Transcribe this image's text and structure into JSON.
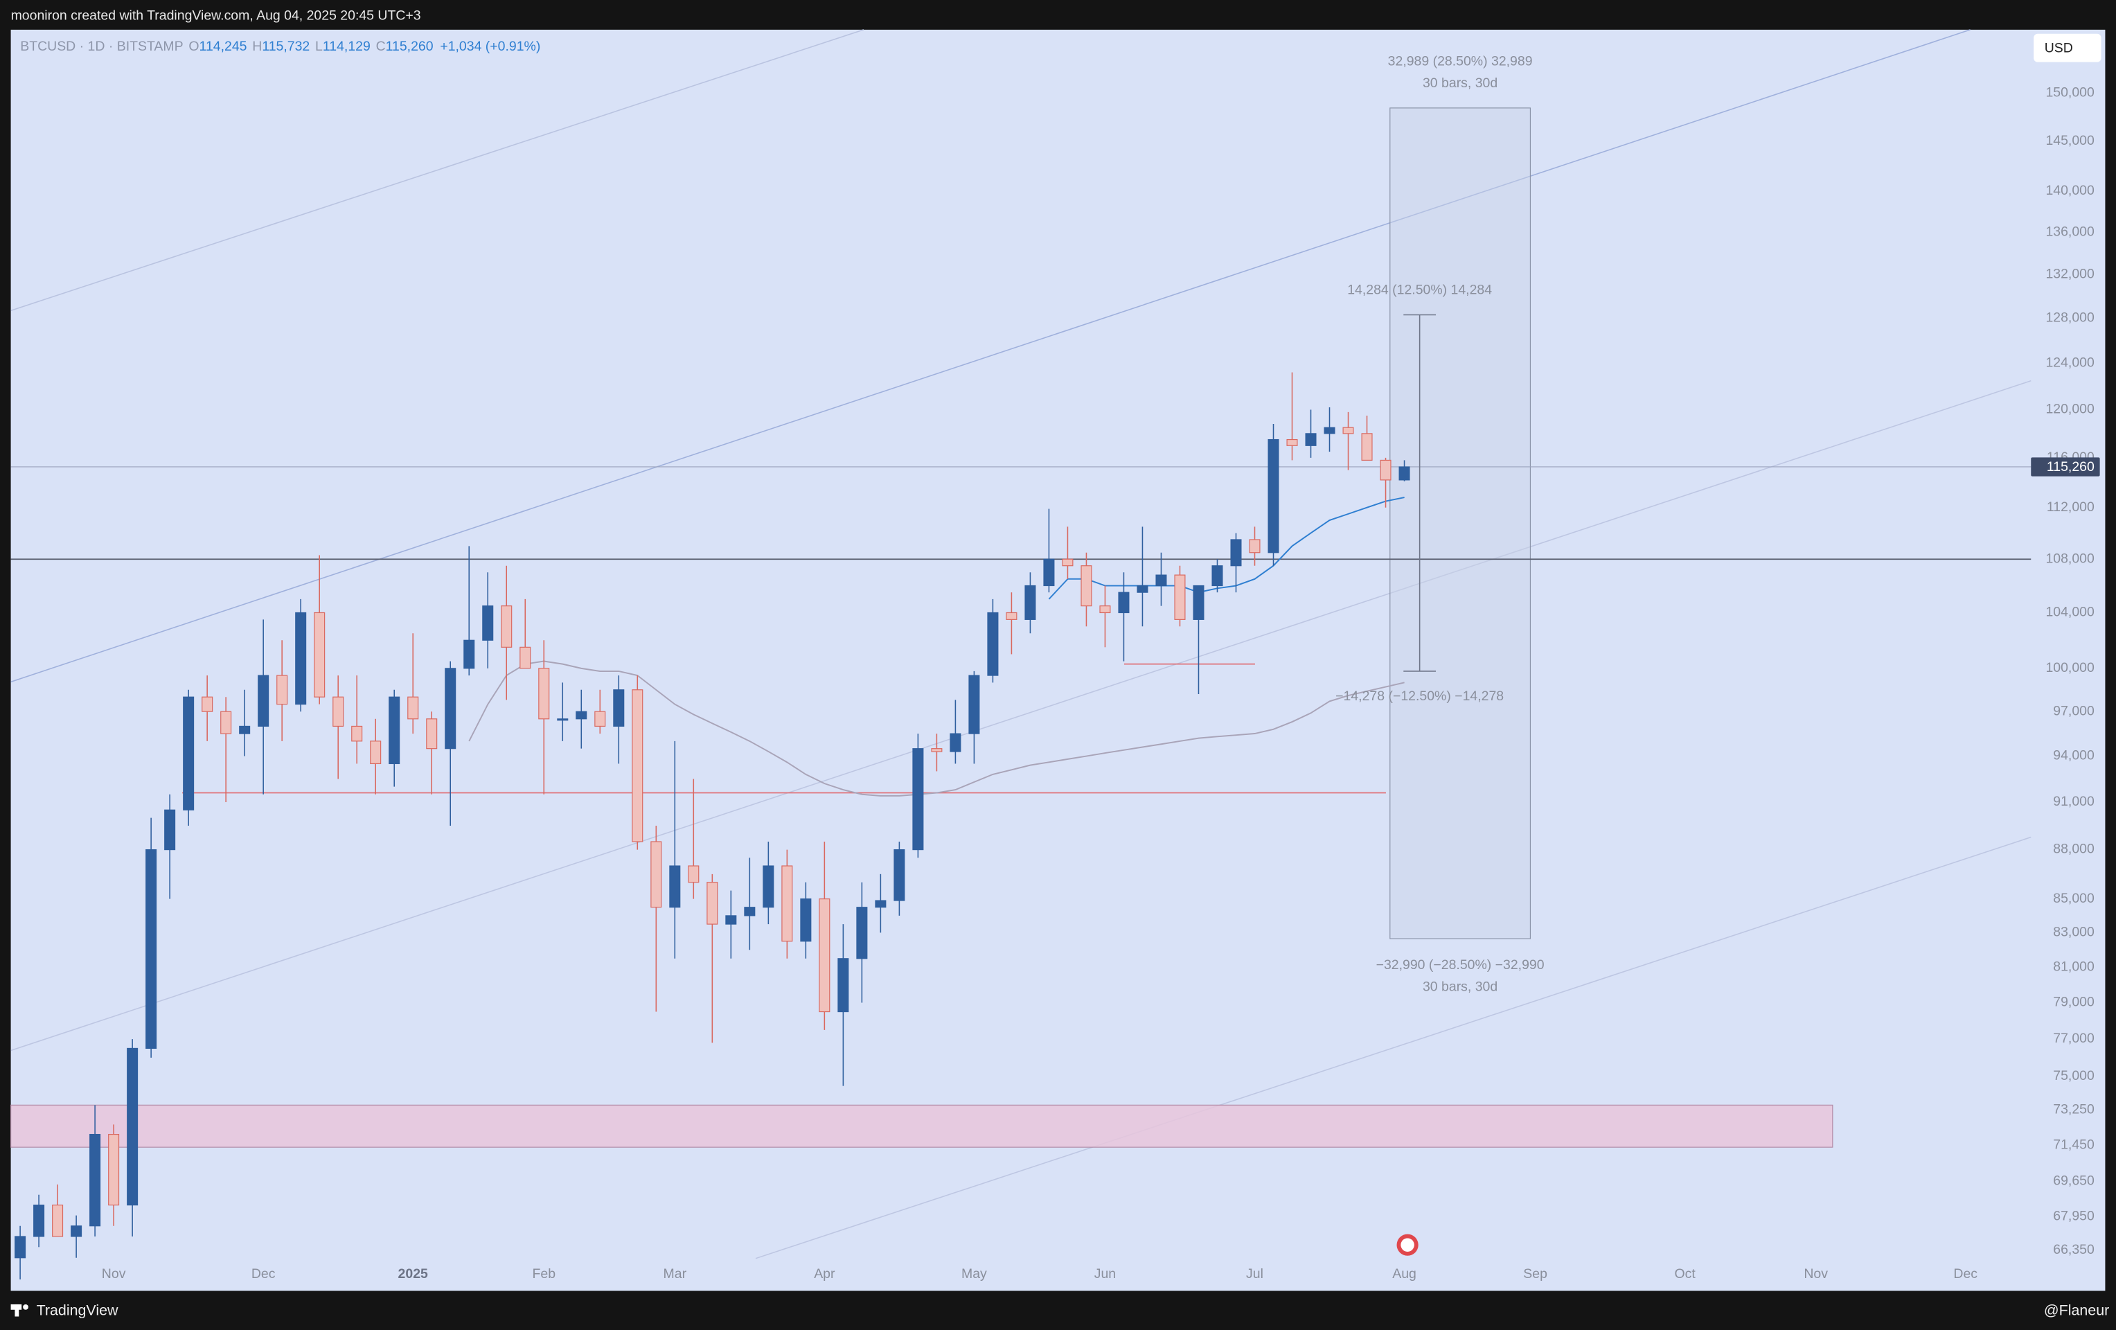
{
  "header": {
    "credit": "mooniron created with TradingView.com, Aug 04, 2025 20:45 UTC+3",
    "legend": {
      "symbol": "BTCUSD · 1D · BITSTAMP",
      "o_key": "O",
      "o": "114,245",
      "h_key": "H",
      "h": "115,732",
      "l_key": "L",
      "l": "114,129",
      "c_key": "C",
      "c": "115,260",
      "change": "+1,034 (+0.91%)"
    },
    "currency": "USD"
  },
  "footer": {
    "brand": "TradingView",
    "author": "@Flaneur"
  },
  "chart_data": {
    "type": "candlestick",
    "log_scale": true,
    "categories": [
      null,
      null,
      null,
      null,
      null,
      "Nov",
      null,
      null,
      null,
      null,
      null,
      null,
      null,
      "Dec",
      null,
      null,
      null,
      null,
      null,
      null,
      null,
      "2025",
      null,
      null,
      null,
      null,
      null,
      null,
      "Feb",
      null,
      null,
      null,
      null,
      null,
      null,
      "Mar",
      null,
      null,
      null,
      null,
      null,
      null,
      null,
      "Apr",
      null,
      null,
      null,
      null,
      null,
      null,
      null,
      "May",
      null,
      null,
      null,
      null,
      null,
      null,
      "Jun",
      null,
      null,
      null,
      null,
      null,
      null,
      null,
      "Jul",
      null,
      null,
      null,
      null,
      null,
      null,
      null,
      "Aug",
      null,
      null,
      null,
      null,
      null,
      null,
      "Sep",
      null,
      null,
      null,
      null,
      null,
      null,
      null,
      "Oct",
      null,
      null,
      null,
      null,
      null,
      null,
      "Nov",
      null,
      null,
      null,
      null,
      null,
      null,
      null,
      "Dec",
      null,
      null,
      null
    ],
    "open": [
      66000,
      67000,
      68500,
      67000,
      67500,
      72000,
      68500,
      76500,
      88000,
      90500,
      98000,
      97000,
      95500,
      96000,
      99500,
      97500,
      104000,
      98000,
      96000,
      95000,
      93500,
      98000,
      96500,
      94500,
      100000,
      102000,
      104500,
      101500,
      100000,
      96500,
      96500,
      97000,
      96000,
      98500,
      88500,
      84500,
      87000,
      86000,
      83500,
      84000,
      84500,
      87000,
      82500,
      85000,
      78500,
      81500,
      84500,
      84900,
      88000,
      94500,
      94300,
      95500,
      99500,
      104000,
      103500,
      106000,
      108000,
      107500,
      104500,
      104000,
      105500,
      106000,
      106800,
      103500,
      106000,
      107500,
      109500,
      108500,
      117500,
      117000,
      118000,
      118500,
      118000,
      115800,
      114200,
      null,
      null,
      null,
      null,
      null,
      null,
      null,
      null,
      null,
      null,
      null,
      null,
      null,
      null,
      null,
      null,
      null,
      null,
      null,
      null,
      null,
      null,
      null,
      null,
      null,
      null,
      null,
      null,
      null,
      null,
      null,
      null,
      null
    ],
    "high": [
      67500,
      69000,
      69500,
      68000,
      73500,
      72500,
      77000,
      90000,
      91500,
      98500,
      99500,
      98000,
      98500,
      103500,
      102000,
      105000,
      108300,
      99500,
      99500,
      96500,
      98500,
      102500,
      97000,
      100500,
      109000,
      107000,
      107500,
      105000,
      102000,
      99000,
      98500,
      98500,
      99500,
      99500,
      89500,
      95000,
      92500,
      86500,
      85500,
      87500,
      88500,
      88000,
      86000,
      88500,
      83500,
      86000,
      86500,
      88500,
      95500,
      95500,
      97800,
      99800,
      105000,
      105500,
      107000,
      111900,
      110500,
      108500,
      106000,
      107000,
      110500,
      108500,
      107500,
      106000,
      108000,
      110000,
      110500,
      118800,
      123200,
      120000,
      120200,
      119800,
      119500,
      116000,
      115800,
      null,
      null,
      null,
      null,
      null,
      null,
      null,
      null,
      null,
      null,
      null,
      null,
      null,
      null,
      null,
      null,
      null,
      null,
      null,
      null,
      null,
      null,
      null,
      null,
      null,
      null,
      null,
      null,
      null,
      null,
      null,
      null,
      null
    ],
    "low": [
      65000,
      66500,
      67000,
      66000,
      67000,
      67500,
      67000,
      76000,
      85000,
      89500,
      95000,
      91000,
      94000,
      91500,
      95000,
      97000,
      97500,
      92500,
      93500,
      91500,
      92000,
      95500,
      91500,
      89500,
      99500,
      100000,
      97800,
      100000,
      91500,
      95000,
      94500,
      95500,
      93500,
      88000,
      78500,
      81500,
      85000,
      76800,
      81500,
      82000,
      83500,
      81500,
      81500,
      77500,
      74500,
      79000,
      83000,
      84000,
      87500,
      93000,
      93500,
      93500,
      99000,
      101000,
      102500,
      105500,
      106500,
      103000,
      101500,
      100500,
      103000,
      104500,
      103000,
      98200,
      105500,
      105500,
      107500,
      107500,
      115800,
      116000,
      116500,
      115000,
      115800,
      112000,
      114100,
      null,
      null,
      null,
      null,
      null,
      null,
      null,
      null,
      null,
      null,
      null,
      null,
      null,
      null,
      null,
      null,
      null,
      null,
      null,
      null,
      null,
      null,
      null,
      null,
      null,
      null,
      null,
      null,
      null,
      null,
      null,
      null,
      null
    ],
    "close": [
      67000,
      68500,
      67000,
      67500,
      72000,
      68500,
      76500,
      88000,
      90500,
      98000,
      97000,
      95500,
      96000,
      99500,
      97500,
      104000,
      98000,
      96000,
      95000,
      93500,
      98000,
      96500,
      94500,
      100000,
      102000,
      104500,
      101500,
      100000,
      96500,
      96500,
      97000,
      96000,
      98500,
      88500,
      84500,
      87000,
      86000,
      83500,
      84000,
      84500,
      87000,
      82500,
      85000,
      78500,
      81500,
      84500,
      84900,
      88000,
      94500,
      94300,
      95500,
      99500,
      104000,
      103500,
      106000,
      108000,
      107500,
      104500,
      104000,
      105500,
      106000,
      106800,
      103500,
      106000,
      107500,
      109500,
      108500,
      117500,
      117000,
      118000,
      118500,
      118000,
      115800,
      114200,
      115260,
      null,
      null,
      null,
      null,
      null,
      null,
      null,
      null,
      null,
      null,
      null,
      null,
      null,
      null,
      null,
      null,
      null,
      null,
      null,
      null,
      null,
      null,
      null,
      null,
      null,
      null,
      null,
      null,
      null,
      null,
      null,
      null,
      null
    ],
    "up_color": "#2f5f9e",
    "down_color": "#d9685f",
    "down_fill": "#f1c1bc",
    "lines": [
      {
        "color": "#a9a4b8",
        "values": [
          null,
          null,
          null,
          null,
          null,
          null,
          null,
          null,
          null,
          null,
          null,
          null,
          null,
          null,
          null,
          null,
          null,
          null,
          null,
          null,
          null,
          null,
          null,
          null,
          95000,
          97500,
          99500,
          100300,
          100500,
          100300,
          100000,
          99800,
          99800,
          99500,
          98500,
          97500,
          96800,
          96200,
          95600,
          95000,
          94300,
          93600,
          92800,
          92200,
          91800,
          91500,
          91400,
          91400,
          91500,
          91600,
          91800,
          92300,
          92800,
          93100,
          93400,
          93600,
          93800,
          94000,
          94200,
          94400,
          94600,
          94800,
          95000,
          95200,
          95300,
          95400,
          95500,
          95800,
          96300,
          96900,
          97700,
          98100,
          98400,
          98700,
          99000,
          null,
          null,
          null,
          null,
          null,
          null,
          null,
          null,
          null,
          null,
          null,
          null,
          null,
          null,
          null,
          null,
          null,
          null,
          null,
          null,
          null,
          null,
          null,
          null,
          null,
          null,
          null,
          null,
          null,
          null,
          null,
          null,
          null
        ]
      },
      {
        "color": "#2f7fd1",
        "values": [
          null,
          null,
          null,
          null,
          null,
          null,
          null,
          null,
          null,
          null,
          null,
          null,
          null,
          null,
          null,
          null,
          null,
          null,
          null,
          null,
          null,
          null,
          null,
          null,
          null,
          null,
          null,
          null,
          null,
          null,
          null,
          null,
          null,
          null,
          null,
          null,
          null,
          null,
          null,
          null,
          null,
          null,
          null,
          null,
          null,
          null,
          null,
          null,
          null,
          null,
          null,
          null,
          null,
          null,
          null,
          105000,
          106500,
          106500,
          106000,
          106000,
          106000,
          106000,
          106000,
          105500,
          105800,
          106000,
          106500,
          107500,
          109000,
          110000,
          111000,
          111500,
          112000,
          112500,
          112800,
          null,
          null,
          null,
          null,
          null,
          null,
          null,
          null,
          null,
          null,
          null,
          null,
          null,
          null,
          null,
          null,
          null,
          null,
          null,
          null,
          null,
          null,
          null,
          null,
          null,
          null,
          null,
          null,
          null,
          null,
          null,
          null,
          null
        ]
      }
    ],
    "levels": [
      {
        "value": 108000,
        "color": "#5a5f70"
      },
      {
        "value": 91600,
        "color": "#e0737a"
      },
      {
        "value": 100300,
        "color": "#e0737a"
      }
    ],
    "zone": {
      "from": 71350,
      "to": 73500,
      "color": "#e7c6dc"
    },
    "measure": {
      "top": 148440,
      "bottom": 82650,
      "top_text": "32,989 (28.50%) 32,989",
      "top_sub": "30 bars, 30d",
      "bottom_text": "−32,990 (−28.50%) −32,990",
      "bottom_sub": "30 bars, 30d"
    },
    "arrow": {
      "from": 128300,
      "to": 99800,
      "up_text": "14,284 (12.50%) 14,284",
      "down_text": "−14,278 (−12.50%) −14,278"
    },
    "last_price": {
      "value": 115260,
      "label": "115,260"
    },
    "ylim": [
      64480,
      156860
    ],
    "yticks": [
      {
        "value": 150000,
        "label": "150,000"
      },
      {
        "value": 145000,
        "label": "145,000"
      },
      {
        "value": 140000,
        "label": "140,000"
      },
      {
        "value": 136000,
        "label": "136,000"
      },
      {
        "value": 132000,
        "label": "132,000"
      },
      {
        "value": 128000,
        "label": "128,000"
      },
      {
        "value": 124000,
        "label": "124,000"
      },
      {
        "value": 120000,
        "label": "120,000"
      },
      {
        "value": 116000,
        "label": "116,000"
      },
      {
        "value": 112000,
        "label": "112,000"
      },
      {
        "value": 108000,
        "label": "108,000"
      },
      {
        "value": 104000,
        "label": "104,000"
      },
      {
        "value": 100000,
        "label": "100,000"
      },
      {
        "value": 97000,
        "label": "97,000"
      },
      {
        "value": 94000,
        "label": "94,000"
      },
      {
        "value": 91000,
        "label": "91,000"
      },
      {
        "value": 88000,
        "label": "88,000"
      },
      {
        "value": 85000,
        "label": "85,000"
      },
      {
        "value": 83000,
        "label": "83,000"
      },
      {
        "value": 81000,
        "label": "81,000"
      },
      {
        "value": 79000,
        "label": "79,000"
      },
      {
        "value": 77000,
        "label": "77,000"
      },
      {
        "value": 75000,
        "label": "75,000"
      },
      {
        "value": 73250,
        "label": "73,250"
      },
      {
        "value": 71450,
        "label": "71,450"
      },
      {
        "value": 69650,
        "label": "69,650"
      },
      {
        "value": 67950,
        "label": "67,950"
      },
      {
        "value": 66350,
        "label": "66,350"
      }
    ]
  }
}
